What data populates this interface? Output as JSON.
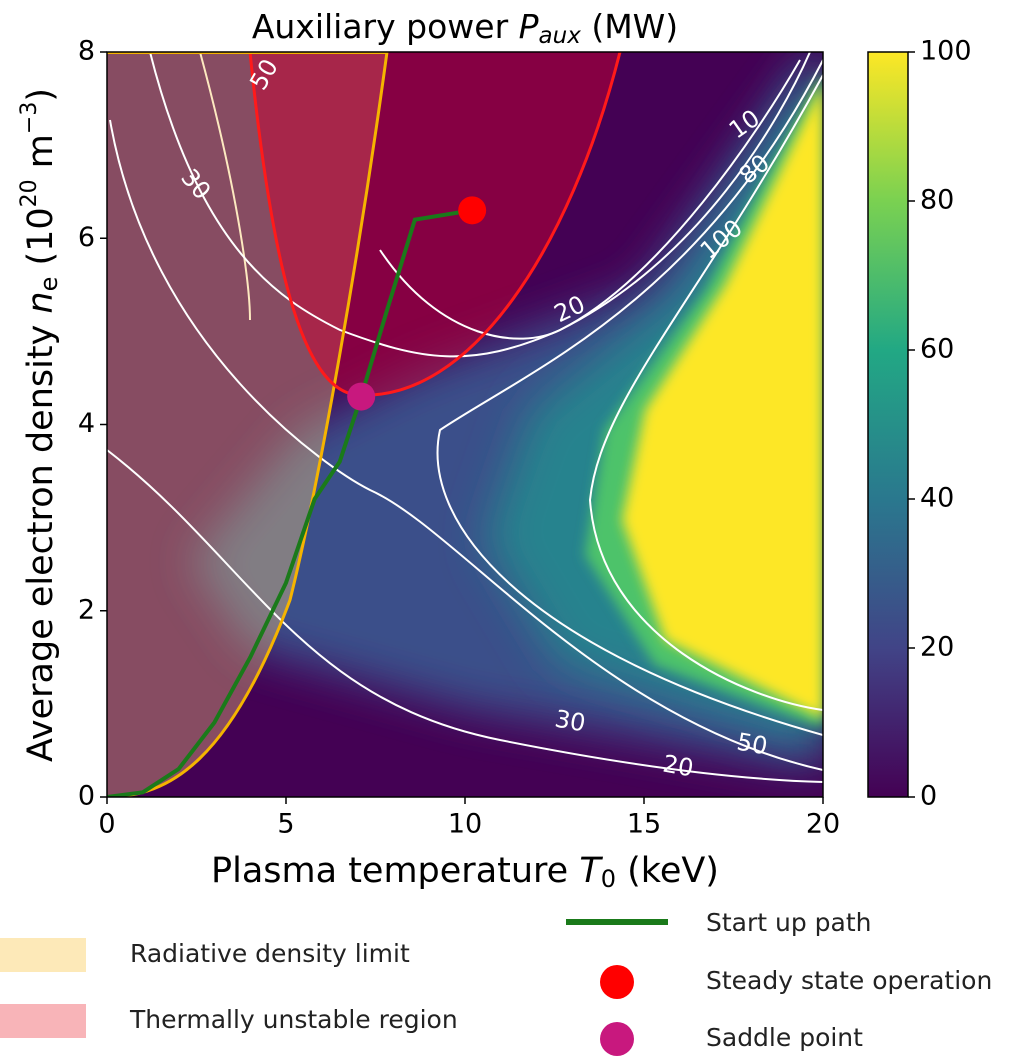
{
  "chart_data": {
    "type": "contour",
    "title_parts": [
      "Auxiliary power ",
      "P",
      "aux",
      " (MW)"
    ],
    "x_label_parts": [
      "Plasma temperature ",
      "T",
      "0",
      " (keV)"
    ],
    "y_label_parts": [
      "Average electron density ",
      "n",
      "e",
      "  (10",
      "20",
      " m",
      "−3",
      ")"
    ],
    "xlim": [
      0,
      20
    ],
    "ylim": [
      0,
      8
    ],
    "xticks": [
      0,
      5,
      10,
      15,
      20
    ],
    "yticks": [
      0,
      2,
      4,
      6,
      8
    ],
    "colorbar": {
      "lim": [
        0,
        100
      ],
      "ticks": [
        0,
        20,
        40,
        60,
        80,
        100
      ]
    },
    "contour_labels": [
      50,
      30,
      10,
      80,
      100,
      20,
      30,
      50,
      20
    ],
    "startup_path": {
      "name": "Start up path",
      "color": "#1a7a1a",
      "x": [
        0,
        1,
        2,
        3,
        4,
        5,
        5.8,
        6.5,
        7.1,
        7.8,
        8.6,
        10.2
      ],
      "y": [
        0,
        0.05,
        0.3,
        0.8,
        1.5,
        2.3,
        3.2,
        3.6,
        4.3,
        5.2,
        6.2,
        6.3
      ]
    },
    "points": [
      {
        "name": "Steady state operation",
        "color": "#ff0000",
        "x": 10.2,
        "y": 6.3
      },
      {
        "name": "Saddle point",
        "color": "#c8187e",
        "x": 7.1,
        "y": 4.3
      }
    ],
    "regions": [
      {
        "name": "Radiative density limit",
        "color": "#fde9b8"
      },
      {
        "name": "Thermally unstable region",
        "color": "#f8b4b8"
      }
    ]
  }
}
